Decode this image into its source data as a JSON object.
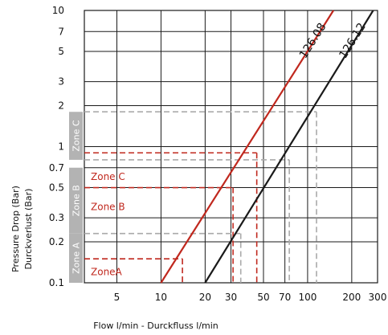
{
  "chart_data": {
    "type": "line",
    "x_scale": "log",
    "y_scale": "log",
    "grid": true,
    "xlabel": "Flow l/min - Durckfluss l/min",
    "ylabel": [
      "Pressure Drop (Bar)",
      "Durckverlust (Bar)"
    ],
    "xlim": [
      3,
      300
    ],
    "ylim": [
      0.1,
      10
    ],
    "x_ticks": [
      {
        "value": 5,
        "label": "5"
      },
      {
        "value": 10,
        "label": "10"
      },
      {
        "value": 20,
        "label": "20"
      },
      {
        "value": 30,
        "label": "30"
      },
      {
        "value": 50,
        "label": "50"
      },
      {
        "value": 70,
        "label": "70"
      },
      {
        "value": 100,
        "label": "100"
      },
      {
        "value": 200,
        "label": "200"
      },
      {
        "value": 300,
        "label": "300"
      }
    ],
    "y_ticks": [
      {
        "value": 0.1,
        "label": "0.1"
      },
      {
        "value": 0.2,
        "label": "0.2"
      },
      {
        "value": 0.3,
        "label": "0.3"
      },
      {
        "value": 0.5,
        "label": "0.5"
      },
      {
        "value": 0.7,
        "label": "0.7"
      },
      {
        "value": 1,
        "label": "1"
      },
      {
        "value": 2,
        "label": "2"
      },
      {
        "value": 3,
        "label": "3"
      },
      {
        "value": 5,
        "label": "5"
      },
      {
        "value": 7,
        "label": "7"
      },
      {
        "value": 10,
        "label": "10"
      }
    ],
    "series": [
      {
        "name": "126.08",
        "color": "#c0281e",
        "x": [
          10,
          150
        ],
        "y": [
          0.1,
          10
        ]
      },
      {
        "name": "126.12",
        "color": "#1a1a1a",
        "x": [
          20,
          280
        ],
        "y": [
          0.1,
          10
        ]
      }
    ],
    "zones": [
      {
        "side_label": "Zone A",
        "label": "ZoneA",
        "y_range": [
          0.1,
          0.23
        ]
      },
      {
        "side_label": "Zone B",
        "label": "Zone B",
        "y_range": [
          0.23,
          0.7
        ]
      },
      {
        "side_label": "Zone C",
        "label": "Zone C",
        "y_range": [
          0.8,
          1.8
        ]
      }
    ],
    "guides": [
      {
        "color": "#c0281e",
        "y": 0.15,
        "x": 14
      },
      {
        "color": "#c0281e",
        "y": 0.5,
        "x": 31
      },
      {
        "color": "#c0281e",
        "y": 0.9,
        "x": 45
      },
      {
        "color": "#aaaaaa",
        "y": 0.23,
        "x": 35
      },
      {
        "color": "#aaaaaa",
        "y": 0.8,
        "x": 75
      },
      {
        "color": "#aaaaaa",
        "y": 1.8,
        "x": 115
      }
    ],
    "colors": {
      "series_red": "#c0281e",
      "series_black": "#1a1a1a",
      "zone_bar": "#b3b3b3",
      "guide_gray": "#aaaaaa"
    }
  }
}
